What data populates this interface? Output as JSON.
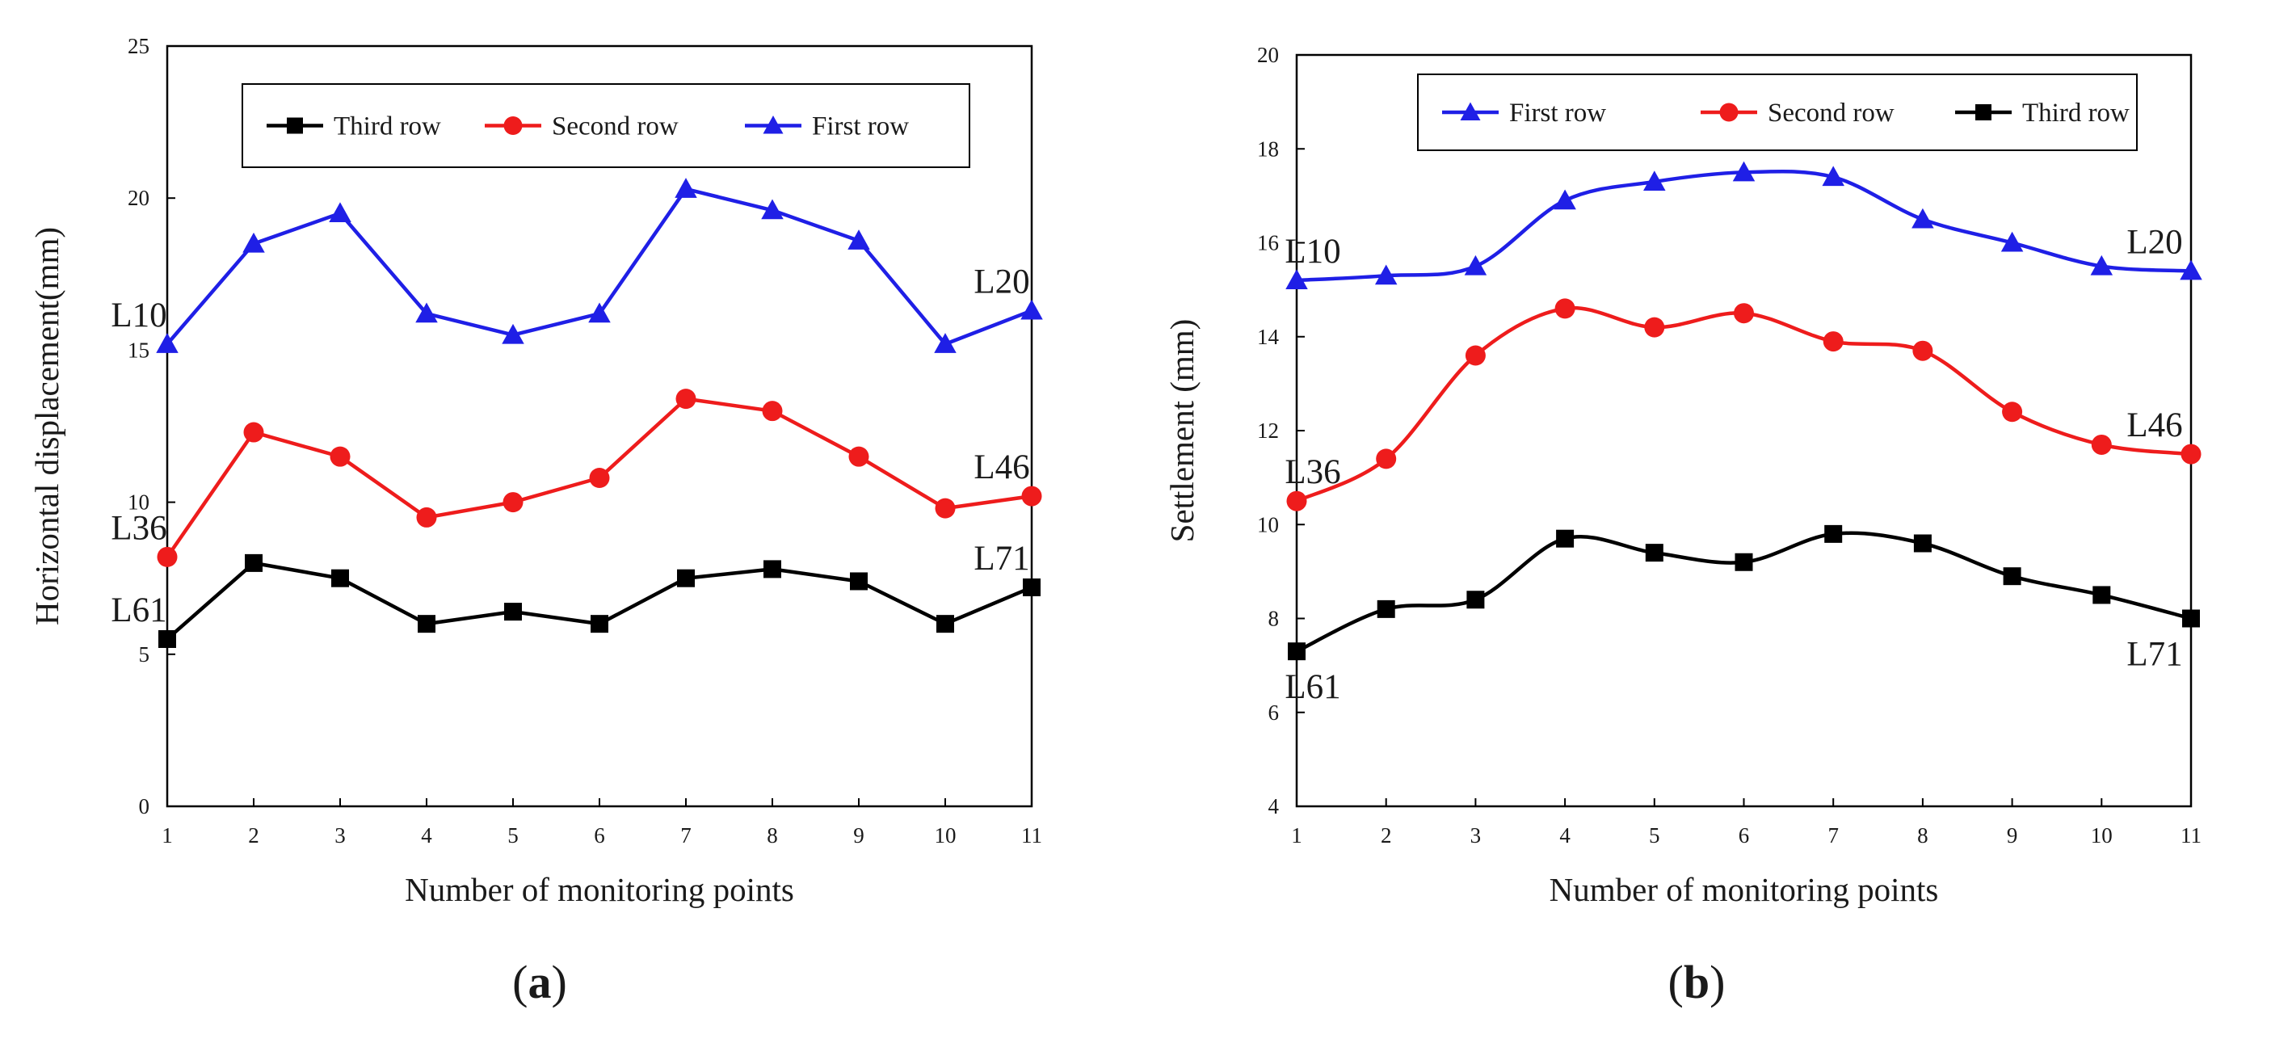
{
  "colors": {
    "first": "#1f1fe6",
    "second": "#ee1c1c",
    "third": "#000000",
    "axis": "#000000",
    "text": "#1a1a1a"
  },
  "chart_data": [
    {
      "id": "a",
      "type": "line",
      "panel_label": "a",
      "xlabel": "Number of monitoring points",
      "ylabel": "Horizontal displacement(mm)",
      "xlim": [
        1,
        11
      ],
      "ylim": [
        0,
        25
      ],
      "xticks": [
        "1",
        "2",
        "3",
        "4",
        "5",
        "6",
        "7",
        "8",
        "9",
        "10",
        "11"
      ],
      "yticks": [
        "0",
        "5",
        "10",
        "15",
        "20",
        "25"
      ],
      "legend_order": [
        "third",
        "second",
        "first"
      ],
      "legend_placement": "top-center",
      "series": [
        {
          "key": "first",
          "name": "First row",
          "marker": "triangle",
          "color": "#1f1fe6",
          "smooth": false,
          "values": [
            15.2,
            18.5,
            19.5,
            16.2,
            15.5,
            16.2,
            20.3,
            19.6,
            18.6,
            15.2,
            16.3
          ]
        },
        {
          "key": "second",
          "name": "Second row",
          "marker": "circle",
          "color": "#ee1c1c",
          "smooth": false,
          "values": [
            8.2,
            12.3,
            11.5,
            9.5,
            10.0,
            10.8,
            13.4,
            13.0,
            11.5,
            9.8,
            10.2
          ]
        },
        {
          "key": "third",
          "name": "Third row",
          "marker": "square",
          "color": "#000000",
          "smooth": false,
          "values": [
            5.5,
            8.0,
            7.5,
            6.0,
            6.4,
            6.0,
            7.5,
            7.8,
            7.4,
            6.0,
            7.2
          ]
        }
      ],
      "annotations": [
        {
          "text": "L10",
          "x": 1,
          "y": 15.2,
          "pos": "above"
        },
        {
          "text": "L20",
          "x": 11,
          "y": 16.3,
          "pos": "above"
        },
        {
          "text": "L36",
          "x": 1,
          "y": 8.2,
          "pos": "above"
        },
        {
          "text": "L46",
          "x": 11,
          "y": 10.2,
          "pos": "above"
        },
        {
          "text": "L61",
          "x": 1,
          "y": 5.5,
          "pos": "above"
        },
        {
          "text": "L71",
          "x": 11,
          "y": 7.2,
          "pos": "above"
        }
      ]
    },
    {
      "id": "b",
      "type": "line",
      "panel_label": "b",
      "xlabel": "Number of monitoring points",
      "ylabel": "Settlement (mm)",
      "xlim": [
        1,
        11
      ],
      "ylim": [
        4,
        20
      ],
      "xticks": [
        "1",
        "2",
        "3",
        "4",
        "5",
        "6",
        "7",
        "8",
        "9",
        "10",
        "11"
      ],
      "yticks": [
        "4",
        "6",
        "8",
        "10",
        "12",
        "14",
        "16",
        "18",
        "20"
      ],
      "legend_order": [
        "first",
        "second",
        "third"
      ],
      "legend_placement": "top-center",
      "series": [
        {
          "key": "first",
          "name": "First row",
          "marker": "triangle",
          "color": "#1f1fe6",
          "smooth": true,
          "values": [
            15.2,
            15.3,
            15.5,
            16.9,
            17.3,
            17.5,
            17.4,
            16.5,
            16.0,
            15.5,
            15.4
          ]
        },
        {
          "key": "second",
          "name": "Second row",
          "marker": "circle",
          "color": "#ee1c1c",
          "smooth": true,
          "values": [
            10.5,
            11.4,
            13.6,
            14.6,
            14.2,
            14.5,
            13.9,
            13.7,
            12.4,
            11.7,
            11.5
          ]
        },
        {
          "key": "third",
          "name": "Third row",
          "marker": "square",
          "color": "#000000",
          "smooth": true,
          "values": [
            7.3,
            8.2,
            8.4,
            9.7,
            9.4,
            9.2,
            9.8,
            9.6,
            8.9,
            8.5,
            8.0
          ]
        }
      ],
      "annotations": [
        {
          "text": "L10",
          "x": 1,
          "y": 15.2,
          "pos": "above"
        },
        {
          "text": "L20",
          "x": 11,
          "y": 15.4,
          "pos": "above"
        },
        {
          "text": "L36",
          "x": 1,
          "y": 10.5,
          "pos": "above"
        },
        {
          "text": "L46",
          "x": 11,
          "y": 11.5,
          "pos": "above"
        },
        {
          "text": "L61",
          "x": 1,
          "y": 7.3,
          "pos": "below"
        },
        {
          "text": "L71",
          "x": 11,
          "y": 8.0,
          "pos": "below"
        }
      ]
    }
  ]
}
